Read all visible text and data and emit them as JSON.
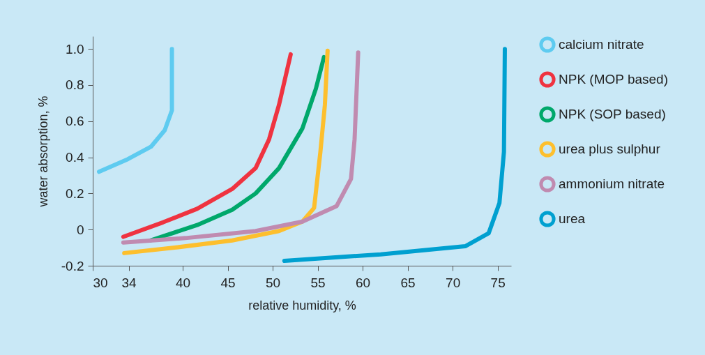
{
  "chart_data": {
    "type": "line",
    "xlabel": "relative humidity, %",
    "ylabel": "water absorption, %",
    "xlim": [
      30,
      76.5
    ],
    "ylim": [
      -0.2,
      1.07
    ],
    "xticks": [
      30,
      34,
      40,
      45,
      50,
      55,
      60,
      65,
      70,
      75
    ],
    "yticks": [
      {
        "value": -0.2,
        "label": "-0.2"
      },
      {
        "value": 0,
        "label": "0"
      },
      0.2,
      0.4,
      0.6,
      0.8,
      {
        "value": 1,
        "label": "1.0"
      }
    ],
    "grid": false,
    "legend": "top right",
    "line_style": "solid",
    "series": [
      {
        "name": "calcium nitrate",
        "color": "#5ecbf0",
        "x": [
          30.7,
          33.9,
          36.5,
          38.0,
          38.8,
          38.8
        ],
        "values": [
          0.32,
          0.39,
          0.46,
          0.55,
          0.66,
          1.0
        ]
      },
      {
        "name": "NPK (MOP based)",
        "color": "#ef3340",
        "x": [
          33.4,
          37.8,
          41.6,
          45.5,
          48.1,
          49.6,
          50.7,
          52.0
        ],
        "values": [
          -0.04,
          0.04,
          0.115,
          0.225,
          0.34,
          0.5,
          0.69,
          0.97
        ]
      },
      {
        "name": "NPK (SOP based)",
        "color": "#00a86b",
        "x": [
          36.4,
          41.6,
          45.5,
          48.1,
          50.7,
          53.3,
          54.8,
          55.7
        ],
        "values": [
          -0.06,
          0.025,
          0.11,
          0.2,
          0.34,
          0.56,
          0.78,
          0.955
        ]
      },
      {
        "name": "urea plus sulphur",
        "color": "#fdbf2d",
        "x": [
          33.5,
          39.1,
          45.5,
          50.7,
          53.3,
          54.6,
          55.3,
          55.8,
          56.1
        ],
        "values": [
          -0.13,
          -0.1,
          -0.06,
          -0.008,
          0.044,
          0.12,
          0.43,
          0.69,
          0.99
        ]
      },
      {
        "name": "ammonium nitrate",
        "color": "#c08bb0",
        "x": [
          33.4,
          40.3,
          48.1,
          53.3,
          57.1,
          58.7,
          59.1,
          59.5
        ],
        "values": [
          -0.072,
          -0.047,
          -0.008,
          0.044,
          0.13,
          0.28,
          0.5,
          0.98
        ]
      },
      {
        "name": "urea",
        "color": "#00a0d0",
        "x": [
          51.3,
          62.0,
          71.4,
          74.0,
          75.2,
          75.7,
          75.8
        ],
        "values": [
          -0.173,
          -0.137,
          -0.092,
          -0.02,
          0.147,
          0.43,
          1.0
        ]
      }
    ]
  }
}
